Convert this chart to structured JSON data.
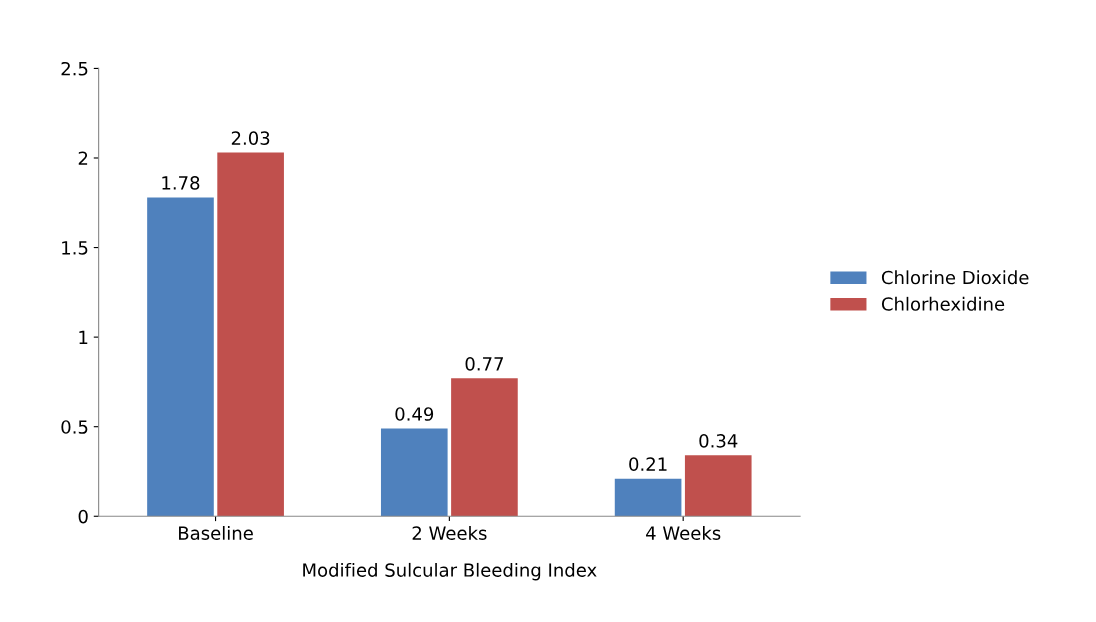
{
  "chart_data": {
    "type": "bar",
    "xlabel": "Modified Sulcular Bleeding Index",
    "categories": [
      "Baseline",
      "2 Weeks",
      "4 Weeks"
    ],
    "series": [
      {
        "name": "Chlorine Dioxide",
        "color": "#4f81bd",
        "values": [
          1.78,
          0.49,
          0.21
        ]
      },
      {
        "name": "Chlorhexidine",
        "color": "#c0504d",
        "values": [
          2.03,
          0.77,
          0.34
        ]
      }
    ],
    "ylim": [
      0,
      2.5
    ],
    "yticks": [
      0,
      0.5,
      1,
      1.5,
      2,
      2.5
    ],
    "data_labels": true,
    "legend": "right",
    "grid": false
  }
}
